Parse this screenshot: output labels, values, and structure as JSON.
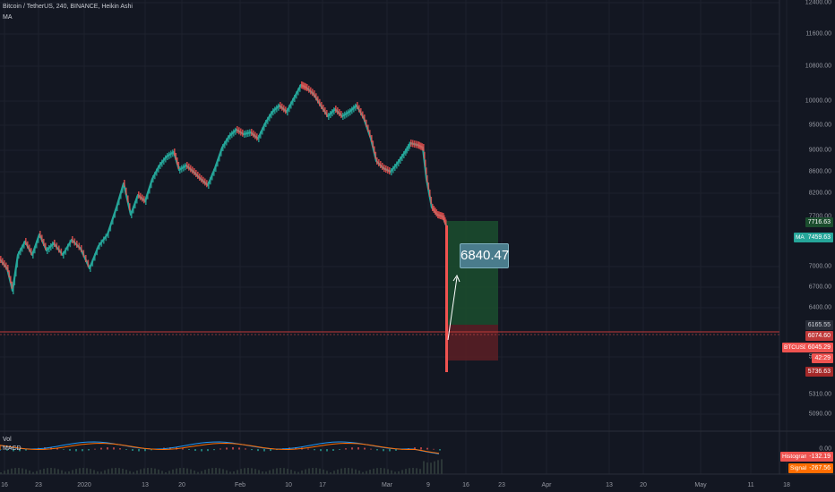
{
  "legend": {
    "title": "Bitcoin / TetherUS, 240, BINANCE, Heikin Ashi",
    "indicator": "MA"
  },
  "price_axis": {
    "ticks": [
      "12400.00",
      "11600.00",
      "10800.00",
      "10000.00",
      "9500.00",
      "9000.00",
      "8600.00",
      "8200.00",
      "7700.00",
      "7000.00",
      "6700.00",
      "6400.00",
      "5810.00",
      "5310.00",
      "5090.00"
    ]
  },
  "macd_axis": {
    "zero_label": "0.00"
  },
  "time_axis": {
    "ticks": [
      "16",
      "23",
      "2020",
      "13",
      "20",
      "Feb",
      "10",
      "17",
      "Mar",
      "9",
      "16",
      "23",
      "Apr",
      "13",
      "20",
      "May",
      "11",
      "18"
    ]
  },
  "badges": {
    "upper_target": "7716.63",
    "ma_label": "MA",
    "ma_value": "7459.63",
    "stop_upper": "6165.55",
    "stop_line": "6074.60",
    "symbol": "BTCUSDT",
    "last_price": "6045.29",
    "countdown": "42:29",
    "lower_stop": "5736.63"
  },
  "callout_value": "6840.47",
  "panes": {
    "volume_label": "Vol",
    "macd_label": "MACD",
    "histogram_label": "Histogram",
    "histogram_value": "-132.19",
    "signal_label": "Signal",
    "signal_value": "-267.56"
  },
  "colors": {
    "background": "#131722",
    "bull": "#26a69a",
    "bear": "#ef5350",
    "macd_line": "#2196f3",
    "signal_line": "#ff6d00",
    "target_zone": "#1b4d2e",
    "stop_zone": "#5c1f24"
  }
}
